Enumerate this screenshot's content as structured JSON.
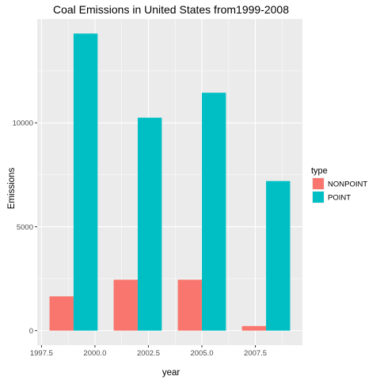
{
  "chart_data": {
    "type": "bar",
    "title": "Coal Emissions in United States from1999-2008",
    "xlabel": "year",
    "ylabel": "Emissions",
    "x": [
      1999,
      2002,
      2005,
      2008
    ],
    "series": [
      {
        "name": "NONPOINT",
        "color": "#F8766D",
        "values": [
          1650,
          2450,
          2450,
          220
        ]
      },
      {
        "name": "POINT",
        "color": "#00BFC4",
        "values": [
          14300,
          10250,
          11450,
          7200
        ]
      }
    ],
    "xlim": [
      1997.3,
      2009.7
    ],
    "ylim": [
      -700,
      15000
    ],
    "xticks": [
      1997.5,
      2000.0,
      2002.5,
      2005.0,
      2007.5
    ],
    "xtick_labels": [
      "1997.5",
      "2000.0",
      "2002.5",
      "2005.0",
      "2007.5"
    ],
    "yticks": [
      0,
      5000,
      10000
    ],
    "ytick_labels": [
      "0",
      "5000",
      "10000"
    ],
    "bar_group_width": 2.25,
    "legend": {
      "title": "type",
      "placement": "right"
    },
    "grid": true,
    "panel_color": "#EBEBEB",
    "grid_color": "#FFFFFF"
  }
}
